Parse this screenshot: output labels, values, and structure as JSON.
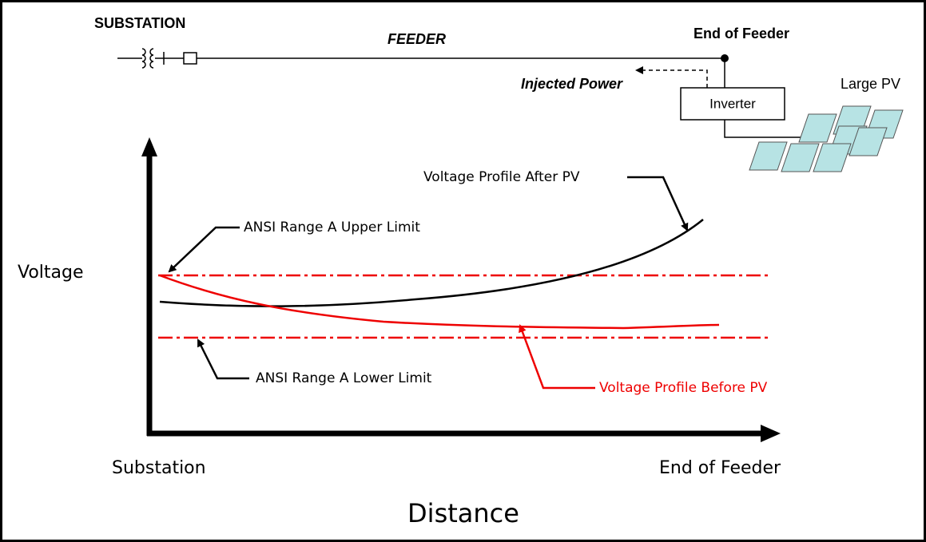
{
  "header": {
    "substation": "SUBSTATION",
    "feeder": "FEEDER",
    "end_of_feeder": "End of Feeder",
    "injected_power": "Injected Power",
    "inverter": "Inverter",
    "large_pv": "Large PV"
  },
  "plot": {
    "y_axis_label": "Voltage",
    "x_axis_label": "Distance",
    "x_start": "Substation",
    "x_end": "End of Feeder",
    "annotations": {
      "after_pv": "Voltage Profile After PV",
      "upper_limit": "ANSI Range A Upper Limit",
      "lower_limit": "ANSI Range A Lower Limit",
      "before_pv": "Voltage Profile Before PV"
    }
  }
}
